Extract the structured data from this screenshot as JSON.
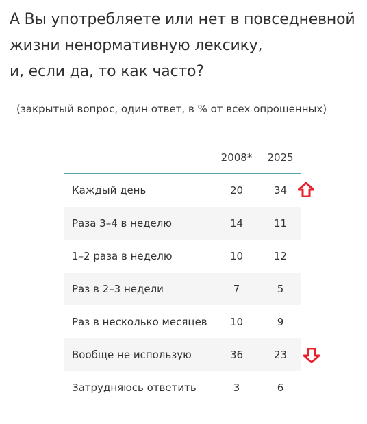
{
  "title": {
    "line1": "А Вы употребляете или нет в повседневной",
    "line2": "жизни ненормативную лексику,",
    "line3": "и, если да, то как часто?"
  },
  "subtitle": "(закрытый вопрос, один ответ, в % от всех опрошенных)",
  "table": {
    "columns": [
      "",
      "2008*",
      "2025"
    ],
    "rows": [
      {
        "label": "Каждый день",
        "y2008": "20",
        "y2025": "34",
        "trend": "up"
      },
      {
        "label": "Раза 3–4 в неделю",
        "y2008": "14",
        "y2025": "11"
      },
      {
        "label": "1–2 раза в неделю",
        "y2008": "10",
        "y2025": "12"
      },
      {
        "label": "Раз в 2–3 недели",
        "y2008": "7",
        "y2025": "5"
      },
      {
        "label": "Раз в несколько месяцев",
        "y2008": "10",
        "y2025": "9"
      },
      {
        "label": "Вообще не использую",
        "y2008": "36",
        "y2025": "23",
        "trend": "down"
      },
      {
        "label": "Затрудняюсь ответить",
        "y2008": "3",
        "y2025": "6"
      }
    ]
  },
  "colors": {
    "header_rule": "#5aa6b0",
    "shaded_row": "#f5f5f5",
    "arrow": "#e8212b"
  },
  "icons": {
    "up": "arrow-up-icon",
    "down": "arrow-down-icon"
  }
}
